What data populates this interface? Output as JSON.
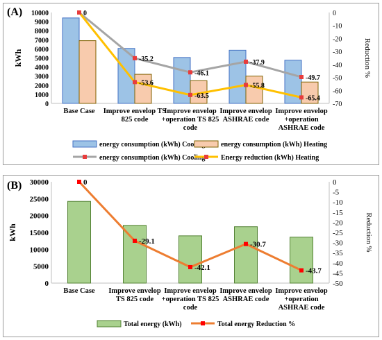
{
  "chart_data": [
    {
      "type": "bar",
      "panel_label": "(A)",
      "categories": [
        [
          "Base Case"
        ],
        [
          "Improve envelop TS",
          "825 code"
        ],
        [
          "Improve envelop",
          "+operation TS 825",
          "code"
        ],
        [
          "Improve envelop",
          "ASHRAE code"
        ],
        [
          "Improve envelop",
          "+operation",
          "ASHRAE code"
        ]
      ],
      "ylabel": "kWh",
      "y2label": "Reduction %",
      "ylim": [
        0,
        10000
      ],
      "yticks": [
        0,
        1000,
        2000,
        3000,
        4000,
        5000,
        6000,
        7000,
        8000,
        9000,
        10000
      ],
      "y2lim": [
        -70,
        0
      ],
      "y2ticks": [
        0,
        -10,
        -20,
        -30,
        -40,
        -50,
        -60,
        -70
      ],
      "series": [
        {
          "name": "energy consumption (kWh) Cooling",
          "kind": "bar",
          "axis": "left",
          "color": "#9dc3e6",
          "edge": "#4472c4",
          "values": [
            9400,
            6050,
            5050,
            5850,
            4750
          ]
        },
        {
          "name": "energy consumption (kWh) Heating",
          "kind": "bar",
          "axis": "left",
          "color": "#f8cbad",
          "edge": "#7f6000",
          "values": [
            6900,
            3200,
            2500,
            3000,
            2350
          ]
        },
        {
          "name": "energy consumption (kWh) Cooling",
          "kind": "line",
          "axis": "right",
          "color": "#a5a5a5",
          "marker": "#e83c3c",
          "values": [
            0,
            -35.2,
            -46.1,
            -37.9,
            -49.7
          ],
          "labels": [
            "0",
            "-35.2",
            "-46.1",
            "-37.9",
            "-49.7"
          ]
        },
        {
          "name": "Energy reduction (kWh) Heating",
          "kind": "line",
          "axis": "right",
          "color": "#ffc000",
          "marker": "#e83c3c",
          "values": [
            0,
            -53.6,
            -63.5,
            -55.8,
            -65.4
          ],
          "labels": [
            "",
            "-53.6",
            "-63.5",
            "-55.8",
            "-65.4"
          ]
        }
      ],
      "legend_placement": "bottom"
    },
    {
      "type": "bar",
      "panel_label": "(B)",
      "categories": [
        [
          "Base Case"
        ],
        [
          "Improve envelop",
          "TS 825 code"
        ],
        [
          "Improve envelop",
          "+operation TS 825",
          "code"
        ],
        [
          "Improve envelop",
          "ASHRAE code"
        ],
        [
          "Improve envelop",
          "+operation",
          "ASHRAE code"
        ]
      ],
      "ylabel": "kWh",
      "y2label": "Reduction %",
      "ylim": [
        0,
        30000
      ],
      "yticks": [
        0,
        5000,
        10000,
        15000,
        20000,
        25000,
        30000
      ],
      "y2lim": [
        -50,
        0
      ],
      "y2ticks": [
        0,
        -5,
        -10,
        -15,
        -20,
        -25,
        -30,
        -35,
        -40,
        -45,
        -50
      ],
      "series": [
        {
          "name": "Total energy (kWh)",
          "kind": "bar",
          "axis": "left",
          "color": "#a9d18e",
          "edge": "#548235",
          "values": [
            24200,
            17100,
            14000,
            16700,
            13600
          ]
        },
        {
          "name": "Total energy Reduction %",
          "kind": "line",
          "axis": "right",
          "color": "#ed7d31",
          "marker": "#ff0000",
          "values": [
            0,
            -29.1,
            -42.1,
            -30.7,
            -43.7
          ],
          "labels": [
            "0",
            "-29.1",
            "-42.1",
            "-30.7",
            "-43.7"
          ]
        }
      ],
      "legend_placement": "bottom"
    }
  ]
}
